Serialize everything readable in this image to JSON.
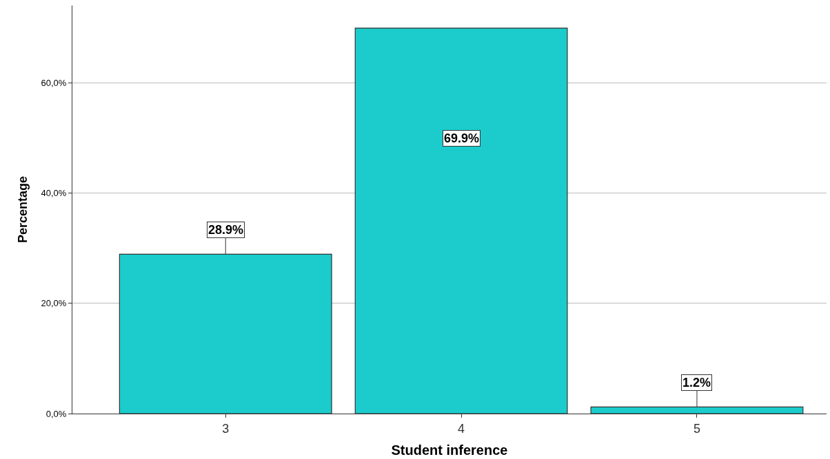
{
  "chart_data": {
    "type": "bar",
    "xlabel": "Student inference",
    "ylabel": "Percentage",
    "categories": [
      "3",
      "4",
      "5"
    ],
    "values": [
      28.9,
      69.9,
      1.2
    ],
    "value_labels": [
      "28.9%",
      "69.9%",
      "1.2%"
    ],
    "color": "#1ccccc",
    "ylim": [
      0,
      74
    ],
    "yticks": [
      {
        "value": 0,
        "label": "0,0%"
      },
      {
        "value": 20,
        "label": "20,0%"
      },
      {
        "value": 40,
        "label": "40,0%"
      },
      {
        "value": 60,
        "label": "60,0%"
      }
    ],
    "grid": "y",
    "legend": false
  }
}
